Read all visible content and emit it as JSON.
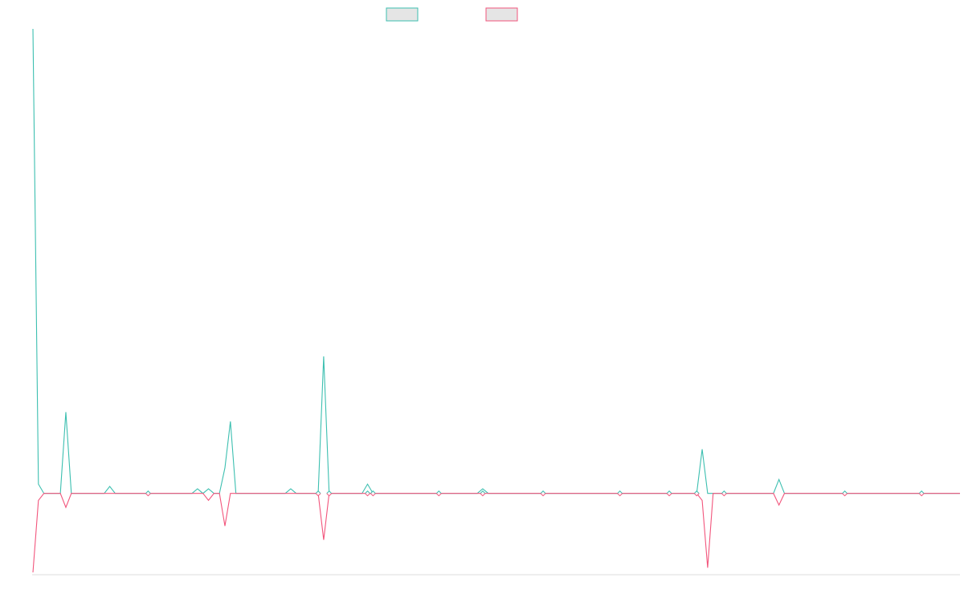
{
  "chart_data": {
    "type": "line",
    "title": "",
    "xlabel": "",
    "ylabel": "",
    "grid": false,
    "legend_position": "top-center",
    "colors": {
      "series_a": "#3cbfb0",
      "series_b": "#f2557c",
      "axis": "#dddddd",
      "legend_fill": "#e5e5e5"
    },
    "n_points": 170,
    "ylim": [
      -17.5,
      100
    ],
    "series": [
      {
        "key": "series_a",
        "color": "#3cbfb0",
        "points": [
          [
            0,
            100
          ],
          [
            1,
            2
          ],
          [
            6,
            17.5
          ],
          [
            14,
            1.5
          ],
          [
            30,
            1
          ],
          [
            32,
            1
          ],
          [
            35,
            5.5
          ],
          [
            36,
            15.5
          ],
          [
            47,
            1
          ],
          [
            53,
            29.5
          ],
          [
            61,
            2
          ],
          [
            82,
            1
          ],
          [
            122,
            9.5
          ],
          [
            136,
            3
          ]
        ]
      },
      {
        "key": "series_b",
        "color": "#f2557c",
        "points": [
          [
            0,
            -17
          ],
          [
            1,
            -1.5
          ],
          [
            6,
            -3
          ],
          [
            32,
            -1.5
          ],
          [
            35,
            -7
          ],
          [
            53,
            -10
          ],
          [
            122,
            -1.5
          ],
          [
            123,
            -16
          ],
          [
            136,
            -2.5
          ]
        ]
      }
    ],
    "markers": [
      21,
      52,
      54,
      61,
      62,
      74,
      82,
      93,
      107,
      116,
      121,
      126,
      148,
      162
    ]
  }
}
